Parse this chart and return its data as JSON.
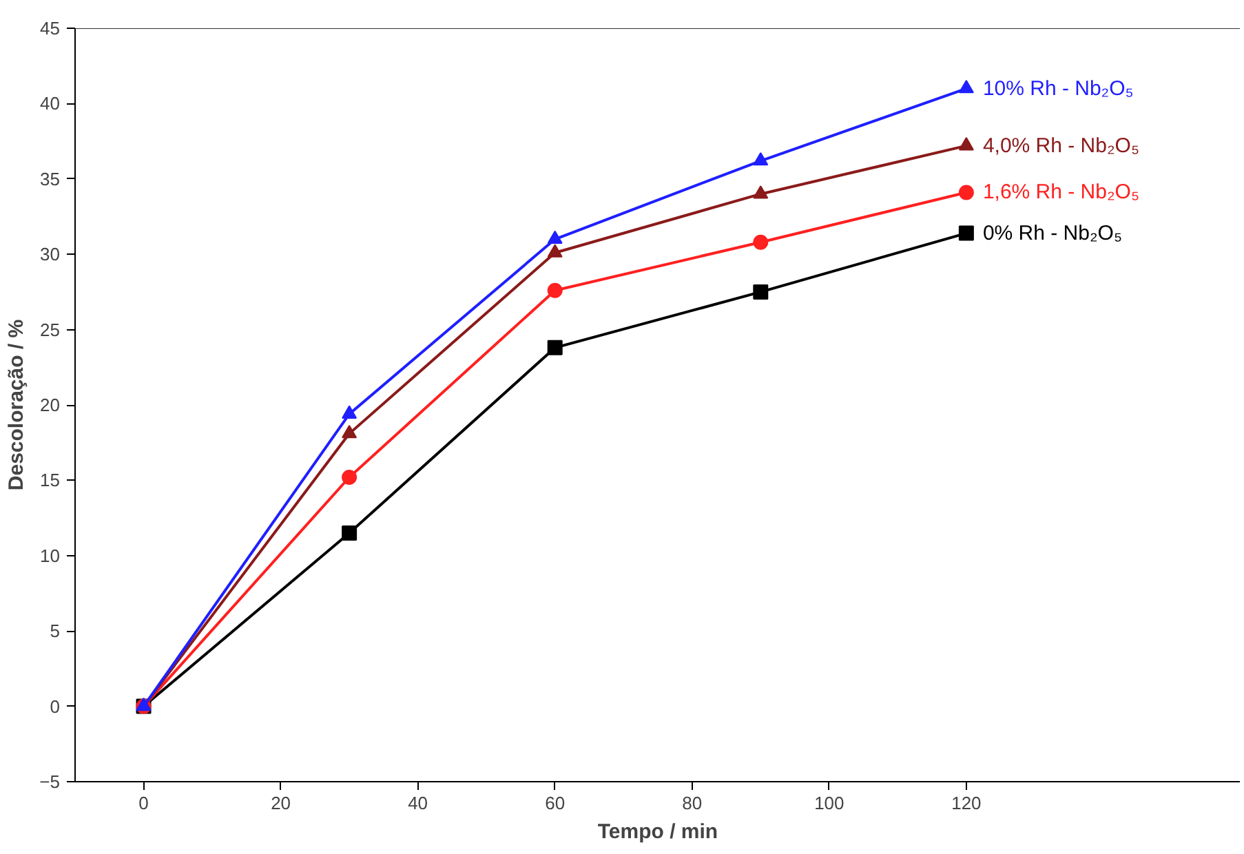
{
  "chart_data": {
    "type": "line",
    "xlabel": "Tempo / min",
    "ylabel": "Descoloração / %",
    "x": [
      0,
      30,
      60,
      90,
      120
    ],
    "xlim": [
      -10,
      160
    ],
    "xticks": [
      0,
      20,
      40,
      60,
      80,
      100,
      120
    ],
    "ylim": [
      -5,
      45
    ],
    "yticks": [
      -5,
      0,
      5,
      10,
      15,
      20,
      25,
      30,
      35,
      40,
      45
    ],
    "grid": false,
    "legend": false,
    "series": [
      {
        "name": "0% Rh - Nb₂O₅",
        "color": "#000000",
        "marker": "square",
        "values": [
          0,
          11.5,
          23.8,
          27.5,
          31.4
        ]
      },
      {
        "name": "1,6% Rh - Nb₂O₅",
        "color": "#ff2020",
        "marker": "circle",
        "values": [
          0,
          15.2,
          27.6,
          30.8,
          34.1
        ]
      },
      {
        "name": "4,0% Rh - Nb₂O₅",
        "color": "#8b1a1a",
        "marker": "triangle",
        "values": [
          0,
          18.1,
          30.1,
          34.0,
          37.2
        ]
      },
      {
        "name": "10% Rh - Nb₂O₅",
        "color": "#1f1fff",
        "marker": "triangle",
        "values": [
          0,
          19.4,
          31.0,
          36.2,
          41.0
        ]
      }
    ]
  }
}
